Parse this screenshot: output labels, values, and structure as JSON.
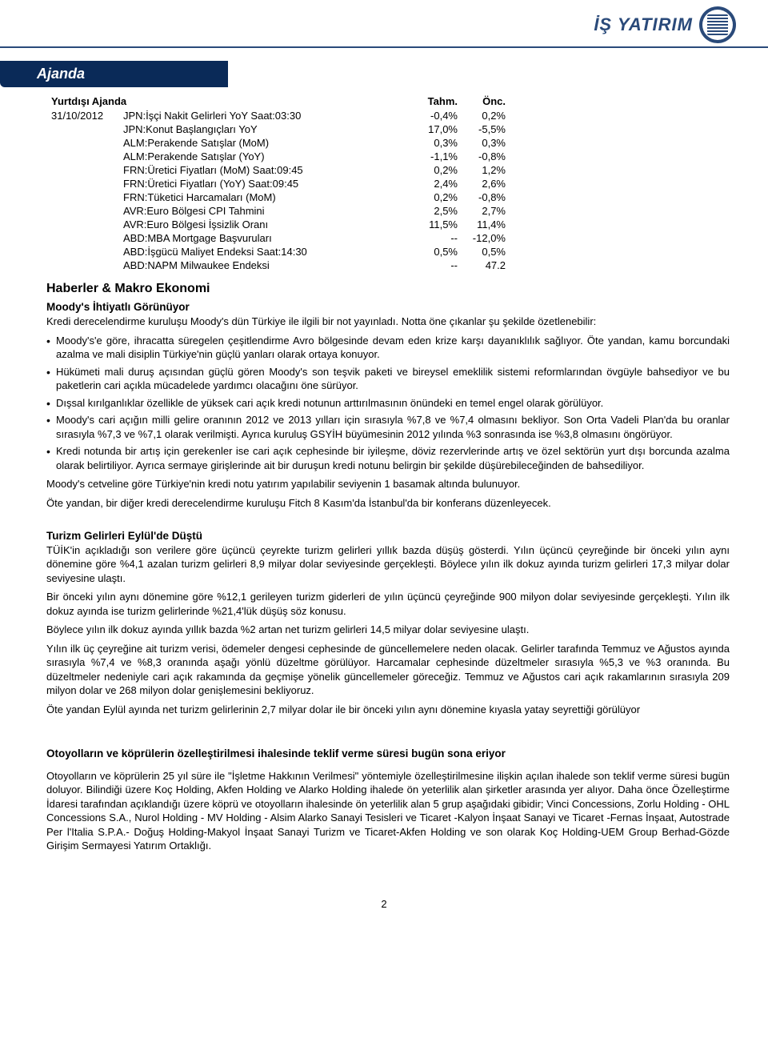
{
  "logo": {
    "brand": "İŞ YATIRIM"
  },
  "band_title": "Ajanda",
  "agenda": {
    "header_row": {
      "label": "Yurtdışı Ajanda",
      "c1": "Tahm.",
      "c2": "Önc."
    },
    "rows": [
      {
        "date": "31/10/2012",
        "label": "JPN:İşçi Nakit Gelirleri YoY  Saat:03:30",
        "v1": "-0,4%",
        "v2": "0,2%"
      },
      {
        "date": "",
        "label": "JPN:Konut Başlangıçları YoY",
        "v1": "17,0%",
        "v2": "-5,5%"
      },
      {
        "date": "",
        "label": "ALM:Perakende Satışlar  (MoM)",
        "v1": "0,3%",
        "v2": "0,3%"
      },
      {
        "date": "",
        "label": "ALM:Perakende Satışlar  (YoY)",
        "v1": "-1,1%",
        "v2": "-0,8%"
      },
      {
        "date": "",
        "label": "FRN:Üretici Fiyatları (MoM)  Saat:09:45",
        "v1": "0,2%",
        "v2": "1,2%"
      },
      {
        "date": "",
        "label": "FRN:Üretici Fiyatları (YoY)  Saat:09:45",
        "v1": "2,4%",
        "v2": "2,6%"
      },
      {
        "date": "",
        "label": "FRN:Tüketici Harcamaları (MoM)",
        "v1": "0,2%",
        "v2": "-0,8%"
      },
      {
        "date": "",
        "label": "AVR:Euro Bölgesi CPI Tahmini",
        "v1": "2,5%",
        "v2": "2,7%"
      },
      {
        "date": "",
        "label": "AVR:Euro Bölgesi İşsizlik Oranı",
        "v1": "11,5%",
        "v2": "11,4%"
      },
      {
        "date": "",
        "label": "ABD:MBA Mortgage Başvuruları",
        "v1": "--",
        "v2": "-12,0%"
      },
      {
        "date": "",
        "label": "ABD:İşgücü Maliyet Endeksi  Saat:14:30",
        "v1": "0,5%",
        "v2": "0,5%"
      },
      {
        "date": "",
        "label": "ABD:NAPM Milwaukee Endeksi",
        "v1": "--",
        "v2": "47.2"
      }
    ]
  },
  "section1": {
    "title": "Haberler & Makro Ekonomi",
    "sub": "Moody's İhtiyatlı Görünüyor",
    "intro": "Kredi derecelendirme kuruluşu Moody's dün Türkiye ile ilgili bir not yayınladı. Notta öne çıkanlar şu şekilde özetlenebilir:",
    "bullets": [
      "Moody's'e göre, ihracatta süregelen çeşitlendirme Avro bölgesinde devam eden krize karşı dayanıklılık sağlıyor. Öte yandan, kamu borcundaki azalma ve mali disiplin Türkiye'nin güçlü yanları olarak ortaya konuyor.",
      "Hükümeti mali duruş açısından güçlü gören Moody's son teşvik paketi ve bireysel emeklilik sistemi reformlarından övgüyle bahsediyor ve bu paketlerin cari açıkla mücadelede yardımcı olacağını öne sürüyor.",
      "Dışsal kırılganlıklar özellikle de yüksek cari açık kredi notunun arttırılmasının önündeki en temel engel olarak görülüyor.",
      "Moody's cari açığın milli gelire oranının 2012 ve 2013 yılları için sırasıyla %7,8 ve %7,4 olmasını bekliyor. Son Orta Vadeli Plan'da bu oranlar sırasıyla %7,3 ve %7,1 olarak verilmişti. Ayrıca kuruluş GSYİH büyümesinin 2012 yılında %3 sonrasında ise %3,8 olmasını öngörüyor.",
      "Kredi notunda bir artış için gerekenler ise cari açık cephesinde bir iyileşme, döviz rezervlerinde artış ve özel sektörün yurt dışı borcunda azalma olarak belirtiliyor. Ayrıca sermaye girişlerinde ait bir duruşun kredi notunu belirgin bir şekilde düşürebileceğinden de bahsediliyor."
    ],
    "tail1": "Moody's cetveline göre Türkiye'nin kredi notu yatırım yapılabilir seviyenin 1 basamak altında bulunuyor.",
    "tail2": "Öte yandan, bir diğer kredi derecelendirme kuruluşu Fitch 8 Kasım'da İstanbul'da bir konferans düzenleyecek."
  },
  "section2": {
    "sub": "Turizm Gelirleri Eylül'de Düştü",
    "p1": "TÜİK'in açıkladığı son verilere göre üçüncü çeyrekte turizm gelirleri yıllık bazda düşüş gösterdi. Yılın üçüncü çeyreğinde bir önceki yılın aynı dönemine göre %4,1 azalan turizm gelirleri 8,9 milyar dolar seviyesinde gerçekleşti. Böylece yılın ilk dokuz ayında turizm gelirleri 17,3 milyar dolar seviyesine ulaştı.",
    "p2": "Bir önceki yılın aynı dönemine göre %12,1 gerileyen turizm giderleri de yılın üçüncü çeyreğinde 900 milyon dolar seviyesinde gerçekleşti. Yılın ilk dokuz ayında ise turizm gelirlerinde %21,4'lük düşüş söz konusu.",
    "p3": "Böylece yılın ilk dokuz ayında yıllık bazda %2 artan net turizm gelirleri 14,5 milyar dolar seviyesine ulaştı.",
    "p4": "Yılın ilk üç çeyreğine ait turizm verisi, ödemeler dengesi cephesinde de güncellemelere neden olacak. Gelirler tarafında Temmuz ve Ağustos ayında sırasıyla %7,4 ve %8,3 oranında aşağı yönlü düzeltme görülüyor. Harcamalar cephesinde düzeltmeler sırasıyla %5,3 ve %3 oranında. Bu düzeltmeler nedeniyle cari açık rakamında da geçmişe yönelik güncellemeler göreceğiz. Temmuz ve Ağustos cari açık rakamlarının sırasıyla 209 milyon dolar ve 268 milyon dolar genişlemesini bekliyoruz.",
    "p5": "Öte yandan Eylül ayında net turizm gelirlerinin 2,7 milyar dolar ile bir önceki yılın aynı dönemine kıyasla yatay seyrettiği görülüyor"
  },
  "section3": {
    "sub": "Otoyolların ve köprülerin özelleştirilmesi ihalesinde teklif verme süresi bugün sona eriyor",
    "p1": "Otoyolların ve köprülerin 25 yıl süre ile \"İşletme Hakkının Verilmesi\" yöntemiyle özelleştirilmesine ilişkin açılan ihalede son teklif verme süresi bugün doluyor. Bilindiği üzere Koç Holding, Akfen Holding ve Alarko Holding ihalede ön yeterlilik alan şirketler arasında yer alıyor. Daha önce Özelleştirme İdaresi tarafından açıklandığı üzere köprü ve otoyolların ihalesinde ön yeterlilik alan 5 grup aşağıdaki gibidir; Vinci Concessions, Zorlu Holding - OHL Concessions S.A., Nurol Holding - MV Holding - Alsim Alarko Sanayi Tesisleri ve Ticaret -Kalyon İnşaat Sanayi ve Ticaret -Fernas İnşaat, Autostrade Per l'Italia S.P.A.- Doğuş Holding-Makyol İnşaat Sanayi Turizm ve Ticaret-Akfen Holding ve son olarak Koç Holding-UEM Group Berhad-Gözde Girişim Sermayesi Yatırım Ortaklığı."
  },
  "page_number": "2"
}
